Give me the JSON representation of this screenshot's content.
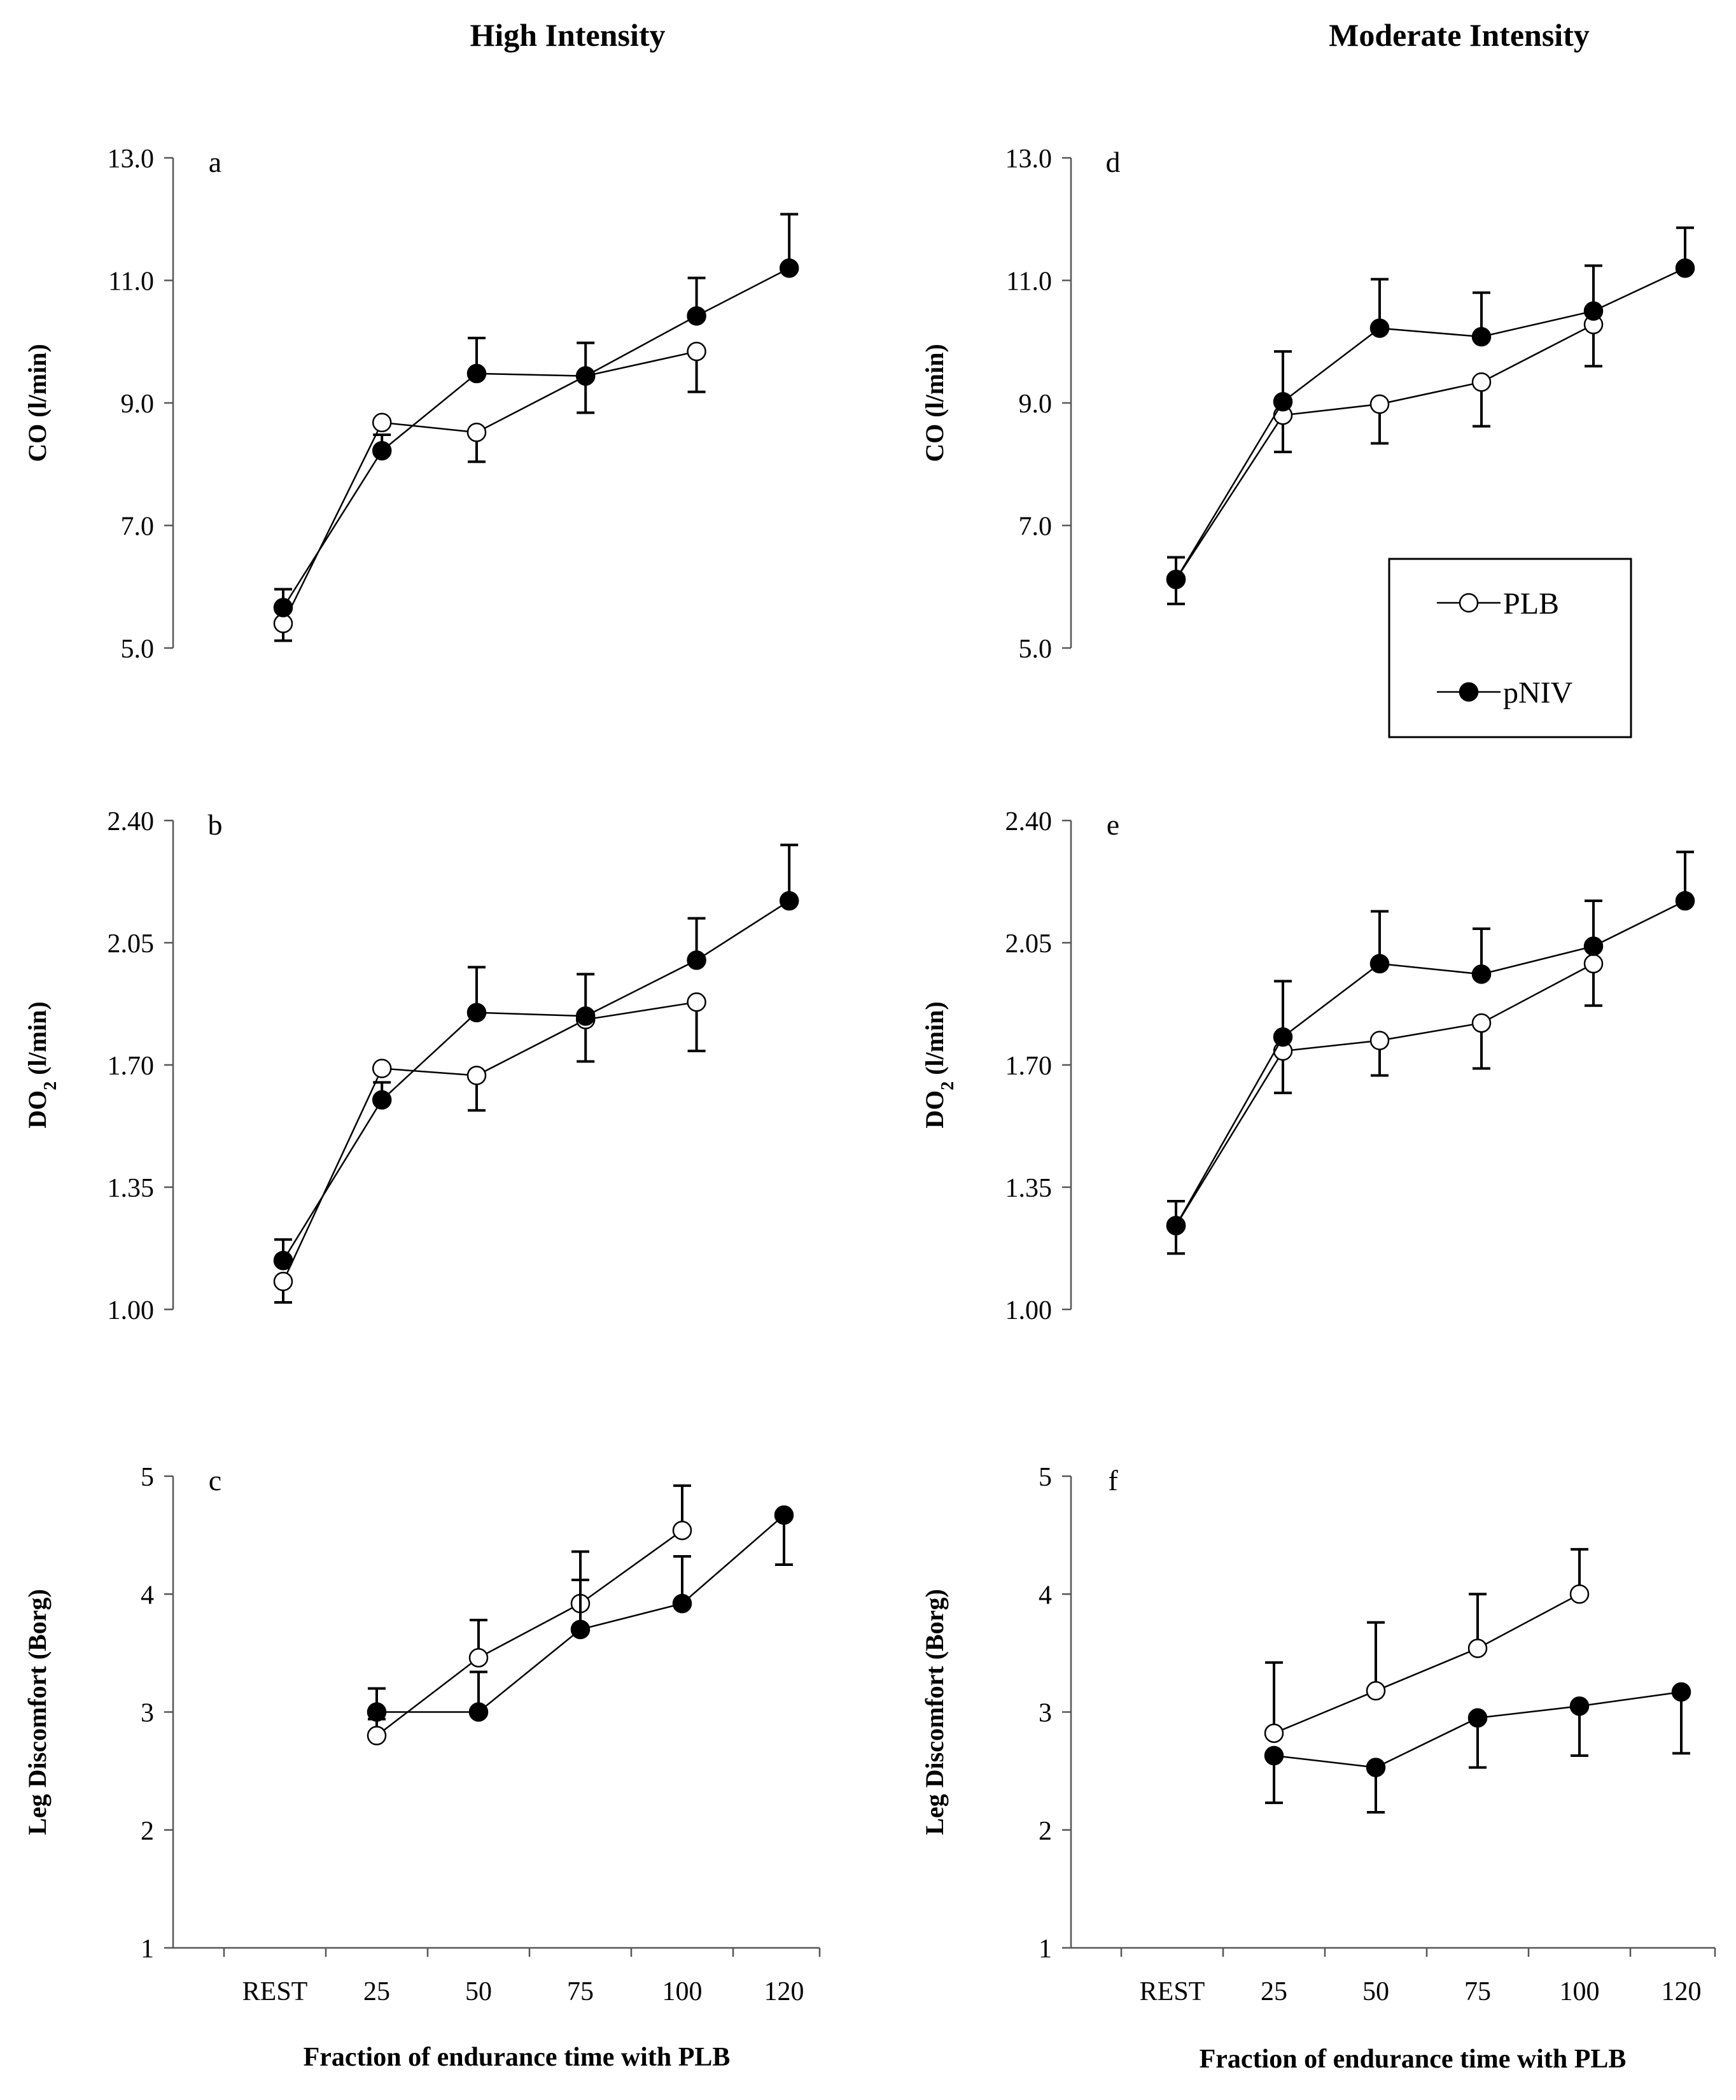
{
  "titles": {
    "left": "High Intensity",
    "right": "Moderate Intensity"
  },
  "legend": {
    "items": [
      {
        "label": "PLB",
        "marker": "open-circle"
      },
      {
        "label": "pNIV",
        "marker": "filled-circle"
      }
    ]
  },
  "colors": {
    "line": "#000000",
    "open_fill": "#ffffff",
    "filled": "#000000",
    "axis": "#555555"
  },
  "chart_data": [
    {
      "id": "a",
      "panel_letter": "a",
      "column": "High Intensity",
      "type": "line",
      "ylabel_main": "CO (l/min)",
      "ylabel_sub": "",
      "ylim": [
        5.0,
        13.0
      ],
      "yticks": [
        "5.0",
        "7.0",
        "9.0",
        "11.0",
        "13.0"
      ],
      "series": [
        {
          "name": "PLB",
          "x": [
            0,
            0.97,
            1.9,
            2.97,
            4.06
          ],
          "values": [
            5.4,
            8.68,
            8.52,
            9.44,
            9.84
          ],
          "err": [
            0.28,
            0,
            0.48,
            0.6,
            0.66
          ],
          "err_dir": "down"
        },
        {
          "name": "pNIV",
          "x": [
            0,
            0.97,
            1.9,
            2.97,
            4.06,
            4.97
          ],
          "values": [
            5.66,
            8.22,
            9.48,
            9.44,
            10.42,
            11.2
          ],
          "err": [
            0.3,
            0.26,
            0.58,
            0.54,
            0.62,
            0.88
          ],
          "err_dir": "up"
        }
      ]
    },
    {
      "id": "b",
      "panel_letter": "b",
      "column": "High Intensity",
      "type": "line",
      "ylabel_main": "DO",
      "ylabel_sub": "2",
      "ylabel_suffix": " (l/min)",
      "ylim": [
        1.0,
        2.4
      ],
      "yticks": [
        "1.00",
        "1.35",
        "1.70",
        "2.05",
        "2.40"
      ],
      "series": [
        {
          "name": "PLB",
          "x": [
            0,
            0.97,
            1.9,
            2.97,
            4.06
          ],
          "values": [
            1.08,
            1.69,
            1.67,
            1.83,
            1.88
          ],
          "err": [
            0.06,
            0,
            0.1,
            0.12,
            0.14
          ],
          "err_dir": "down"
        },
        {
          "name": "pNIV",
          "x": [
            0,
            0.97,
            1.9,
            2.97,
            4.06,
            4.97
          ],
          "values": [
            1.14,
            1.6,
            1.85,
            1.84,
            2.0,
            2.17
          ],
          "err": [
            0.06,
            0.05,
            0.13,
            0.12,
            0.12,
            0.16
          ],
          "err_dir": "up"
        }
      ]
    },
    {
      "id": "c",
      "panel_letter": "c",
      "column": "High Intensity",
      "type": "line",
      "ylabel_main": "Leg Discomfort (Borg)",
      "ylabel_sub": "",
      "ylim": [
        1,
        5
      ],
      "yticks": [
        "1",
        "2",
        "3",
        "4",
        "5"
      ],
      "xticks": [
        "REST",
        "25",
        "50",
        "75",
        "100",
        "120"
      ],
      "xlabel": "Fraction of endurance time with PLB",
      "series": [
        {
          "name": "PLB",
          "x": [
            1,
            2,
            3,
            4
          ],
          "values": [
            2.8,
            3.46,
            3.92,
            4.54
          ],
          "err": [
            0.14,
            0.32,
            0.44,
            0.38
          ],
          "err_dir": "up"
        },
        {
          "name": "pNIV",
          "x": [
            1,
            2,
            3,
            4,
            5
          ],
          "values": [
            3.0,
            3.0,
            3.7,
            3.92,
            4.67
          ],
          "err": [
            0.2,
            0.34,
            0.42,
            0.4,
            0.42
          ],
          "err_dir": "mixed"
        }
      ]
    },
    {
      "id": "d",
      "panel_letter": "d",
      "column": "Moderate Intensity",
      "type": "line",
      "ylabel_main": "CO (l/min)",
      "ylabel_sub": "",
      "ylim": [
        5.0,
        13.0
      ],
      "yticks": [
        "5.0",
        "7.0",
        "9.0",
        "11.0",
        "13.0"
      ],
      "series": [
        {
          "name": "PLB",
          "x": [
            0,
            1.05,
            2.0,
            3.0,
            4.1
          ],
          "values": [
            6.12,
            8.8,
            8.98,
            9.34,
            10.28
          ],
          "err": [
            0.4,
            0.6,
            0.64,
            0.72,
            0.68
          ],
          "err_dir": "down"
        },
        {
          "name": "pNIV",
          "x": [
            0,
            1.05,
            2.0,
            3.0,
            4.1,
            5.0
          ],
          "values": [
            6.12,
            9.02,
            10.22,
            10.08,
            10.5,
            11.2
          ],
          "err": [
            0.36,
            0.82,
            0.8,
            0.72,
            0.74,
            0.66
          ],
          "err_dir": "up"
        }
      ]
    },
    {
      "id": "e",
      "panel_letter": "e",
      "column": "Moderate Intensity",
      "type": "line",
      "ylabel_main": "DO",
      "ylabel_sub": "2",
      "ylabel_suffix": " (l/min)",
      "ylim": [
        1.0,
        2.4
      ],
      "yticks": [
        "1.00",
        "1.35",
        "1.70",
        "2.05",
        "2.40"
      ],
      "series": [
        {
          "name": "PLB",
          "x": [
            0,
            1.05,
            2.0,
            3.0,
            4.1
          ],
          "values": [
            1.24,
            1.74,
            1.77,
            1.82,
            1.99
          ],
          "err": [
            0.08,
            0.12,
            0.1,
            0.13,
            0.12
          ],
          "err_dir": "down"
        },
        {
          "name": "pNIV",
          "x": [
            0,
            1.05,
            2.0,
            3.0,
            4.1,
            5.0
          ],
          "values": [
            1.24,
            1.78,
            1.99,
            1.96,
            2.04,
            2.17
          ],
          "err": [
            0.07,
            0.16,
            0.15,
            0.13,
            0.13,
            0.14
          ],
          "err_dir": "up"
        }
      ]
    },
    {
      "id": "f",
      "panel_letter": "f",
      "column": "Moderate Intensity",
      "type": "line",
      "ylabel_main": "Leg Discomfort (Borg)",
      "ylabel_sub": "",
      "ylim": [
        1,
        5
      ],
      "yticks": [
        "1",
        "2",
        "3",
        "4",
        "5"
      ],
      "xticks": [
        "REST",
        "25",
        "50",
        "75",
        "100",
        "120"
      ],
      "xlabel": "Fraction of endurance time with PLB",
      "series": [
        {
          "name": "PLB",
          "x": [
            1,
            2,
            3,
            4
          ],
          "values": [
            2.82,
            3.18,
            3.54,
            4.0
          ],
          "err": [
            0.6,
            0.58,
            0.46,
            0.38
          ],
          "err_dir": "up"
        },
        {
          "name": "pNIV",
          "x": [
            1,
            2,
            3,
            4,
            5
          ],
          "values": [
            2.63,
            2.53,
            2.95,
            3.05,
            3.17
          ],
          "err": [
            0.4,
            0.38,
            0.42,
            0.42,
            0.52
          ],
          "err_dir": "down"
        }
      ]
    }
  ]
}
